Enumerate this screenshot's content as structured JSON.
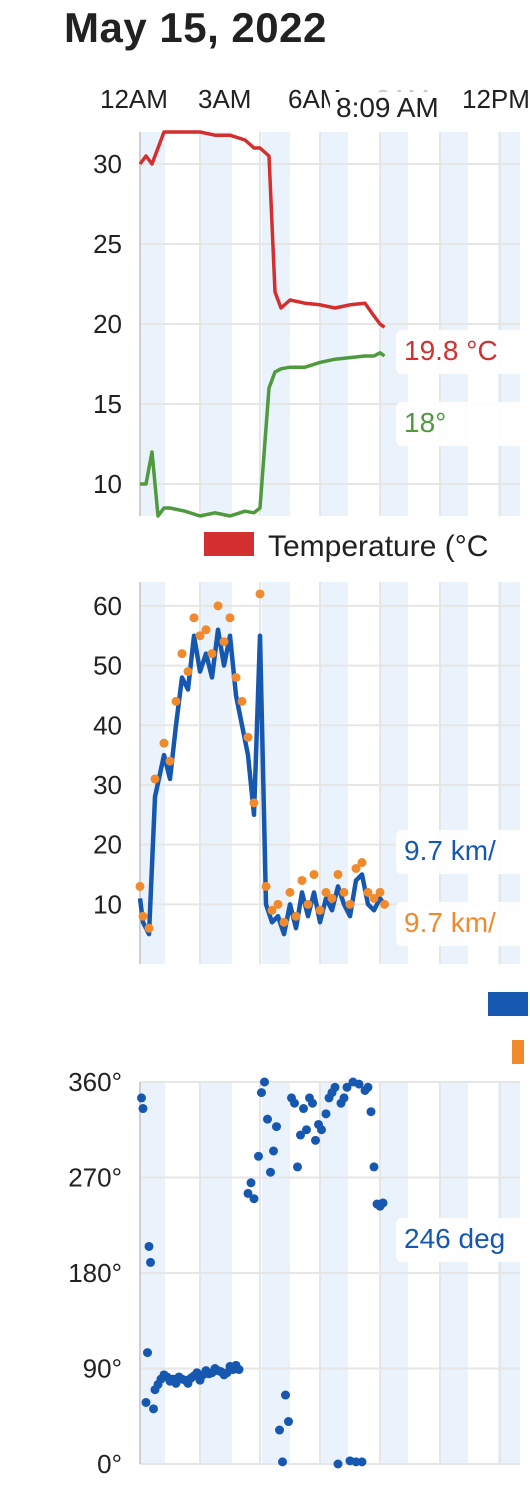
{
  "date": "May 15, 2022",
  "time_ticks": [
    {
      "label": "12AM",
      "faded": false
    },
    {
      "label": "3AM",
      "faded": false
    },
    {
      "label": "6AM",
      "faded": false
    },
    {
      "label": "9AM",
      "faded": true
    },
    {
      "label": "12PM",
      "faded": false
    }
  ],
  "cursor_time": "8:09 AM",
  "colors": {
    "temp": "#d32f2f",
    "dew": "#4e9a3d",
    "wind": "#1658b0",
    "gust": "#f08a2c",
    "band": "#eaf2fb",
    "grid": "#e6e6e6"
  },
  "charts": [
    {
      "id": "temperature",
      "readouts": [
        {
          "text": "19.8 °C",
          "color": "#d32f2f"
        },
        {
          "text": "18°",
          "color": "#4e9a3d"
        }
      ],
      "legend": [
        {
          "label": "Temperature (°C",
          "color": "#d32f2f"
        }
      ]
    },
    {
      "id": "wind",
      "readouts": [
        {
          "text": "9.7 km/",
          "color": "#1658b0"
        },
        {
          "text": "9.7 km/",
          "color": "#f08a2c"
        }
      ],
      "legend": [
        {
          "label": "",
          "color": "#1658b0"
        },
        {
          "label": "",
          "color": "#f08a2c"
        }
      ]
    },
    {
      "id": "direction",
      "readouts": [
        {
          "text": "246 deg",
          "color": "#1658b0"
        }
      ],
      "legend": []
    }
  ],
  "chart_data": [
    {
      "type": "line",
      "ylim": [
        8,
        32
      ],
      "yticks": [
        "10",
        "15",
        "20",
        "25",
        "30"
      ],
      "x_hours": [
        0,
        0.2,
        0.4,
        0.6,
        0.8,
        1.0,
        1.5,
        2.0,
        2.5,
        3.0,
        3.5,
        3.8,
        4.0,
        4.3,
        4.5,
        4.7,
        5.0,
        5.5,
        6.0,
        6.5,
        7.0,
        7.5,
        7.8,
        8.0,
        8.15
      ],
      "series": [
        {
          "values": [
            30,
            30.5,
            30,
            31,
            32,
            32,
            32,
            32,
            31.8,
            31.8,
            31.5,
            31,
            31,
            30.5,
            22,
            21,
            21.5,
            21.3,
            21.2,
            21,
            21.2,
            21.3,
            20.5,
            20,
            19.8
          ]
        },
        {
          "values": [
            10,
            10,
            12,
            8,
            8.5,
            8.5,
            8.3,
            8,
            8.2,
            8,
            8.3,
            8.2,
            8.5,
            16,
            17,
            17.2,
            17.3,
            17.3,
            17.6,
            17.8,
            17.9,
            18,
            18,
            18.2,
            18
          ]
        }
      ]
    },
    {
      "type": "line",
      "ylim": [
        0,
        64
      ],
      "yticks": [
        "10",
        "20",
        "30",
        "40",
        "50",
        "60"
      ],
      "x_hours": [
        0,
        0.1,
        0.3,
        0.5,
        0.8,
        1.0,
        1.2,
        1.4,
        1.6,
        1.8,
        2.0,
        2.2,
        2.4,
        2.6,
        2.8,
        3.0,
        3.2,
        3.4,
        3.6,
        3.8,
        4.0,
        4.2,
        4.4,
        4.6,
        4.8,
        5.0,
        5.2,
        5.4,
        5.6,
        5.8,
        6.0,
        6.2,
        6.4,
        6.6,
        6.8,
        7.0,
        7.2,
        7.4,
        7.6,
        7.8,
        8.0,
        8.15
      ],
      "series": [
        {
          "values": [
            11,
            7,
            5,
            28,
            35,
            31,
            40,
            48,
            46,
            55,
            49,
            52,
            48,
            56,
            50,
            55,
            45,
            40,
            35,
            25,
            55,
            10,
            7,
            8,
            5,
            10,
            6,
            12,
            8,
            12,
            7,
            11,
            9,
            13,
            10,
            8,
            14,
            15,
            10,
            9,
            11,
            10
          ]
        },
        {
          "values": [
            13,
            8,
            6,
            31,
            37,
            34,
            44,
            52,
            49,
            58,
            55,
            56,
            52,
            60,
            54,
            58,
            48,
            44,
            38,
            27,
            62,
            13,
            9,
            10,
            7,
            12,
            8,
            14,
            10,
            15,
            9,
            12,
            11,
            15,
            12,
            10,
            16,
            17,
            12,
            11,
            12,
            10
          ]
        }
      ]
    },
    {
      "type": "scatter",
      "ylim": [
        0,
        360
      ],
      "yticks": [
        "0°",
        "90°",
        "180°",
        "270°",
        "360°"
      ],
      "series": [
        {
          "points": [
            [
              0.05,
              345
            ],
            [
              0.1,
              335
            ],
            [
              0.3,
              205
            ],
            [
              0.35,
              190
            ],
            [
              0.25,
              105
            ],
            [
              0.2,
              58
            ],
            [
              0.45,
              52
            ],
            [
              0.5,
              70
            ],
            [
              0.6,
              75
            ],
            [
              0.7,
              80
            ],
            [
              0.8,
              84
            ],
            [
              0.9,
              82
            ],
            [
              1.0,
              78
            ],
            [
              1.1,
              80
            ],
            [
              1.2,
              76
            ],
            [
              1.3,
              82
            ],
            [
              1.4,
              80
            ],
            [
              1.5,
              79
            ],
            [
              1.6,
              76
            ],
            [
              1.7,
              81
            ],
            [
              1.8,
              83
            ],
            [
              1.9,
              86
            ],
            [
              2.0,
              79
            ],
            [
              2.1,
              84
            ],
            [
              2.2,
              88
            ],
            [
              2.3,
              85
            ],
            [
              2.4,
              86
            ],
            [
              2.5,
              90
            ],
            [
              2.6,
              88
            ],
            [
              2.7,
              87
            ],
            [
              2.8,
              84
            ],
            [
              2.9,
              86
            ],
            [
              3.0,
              92
            ],
            [
              3.1,
              89
            ],
            [
              3.2,
              93
            ],
            [
              3.3,
              89
            ],
            [
              3.6,
              255
            ],
            [
              3.7,
              265
            ],
            [
              3.8,
              250
            ],
            [
              3.95,
              290
            ],
            [
              4.05,
              350
            ],
            [
              4.15,
              360
            ],
            [
              4.25,
              325
            ],
            [
              4.35,
              275
            ],
            [
              4.45,
              295
            ],
            [
              4.55,
              318
            ],
            [
              4.65,
              32
            ],
            [
              4.75,
              2
            ],
            [
              4.85,
              65
            ],
            [
              4.95,
              40
            ],
            [
              5.05,
              345
            ],
            [
              5.15,
              340
            ],
            [
              5.25,
              280
            ],
            [
              5.35,
              310
            ],
            [
              5.45,
              335
            ],
            [
              5.55,
              315
            ],
            [
              5.65,
              345
            ],
            [
              5.75,
              340
            ],
            [
              5.85,
              305
            ],
            [
              5.95,
              320
            ],
            [
              6.05,
              315
            ],
            [
              6.2,
              330
            ],
            [
              6.3,
              345
            ],
            [
              6.4,
              350
            ],
            [
              6.5,
              355
            ],
            [
              6.6,
              0
            ],
            [
              6.7,
              340
            ],
            [
              6.8,
              345
            ],
            [
              6.9,
              355
            ],
            [
              7.0,
              3
            ],
            [
              7.1,
              360
            ],
            [
              7.2,
              2
            ],
            [
              7.3,
              358
            ],
            [
              7.4,
              2
            ],
            [
              7.5,
              352
            ],
            [
              7.6,
              355
            ],
            [
              7.7,
              332
            ],
            [
              7.8,
              280
            ],
            [
              7.9,
              245
            ],
            [
              8.0,
              243
            ],
            [
              8.1,
              246
            ]
          ]
        }
      ]
    }
  ]
}
